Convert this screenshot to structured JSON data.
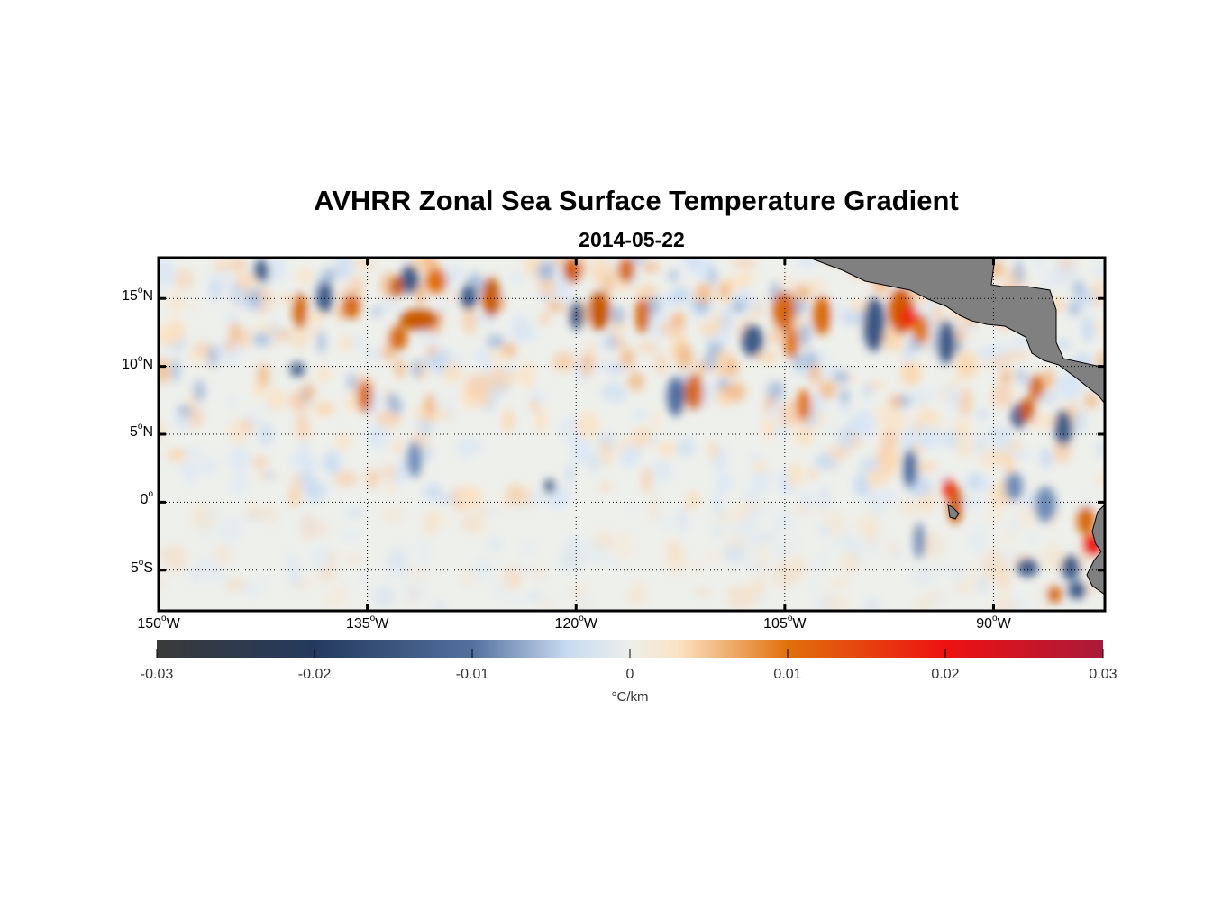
{
  "title": "AVHRR Zonal Sea Surface Temperature Gradient",
  "subtitle": "2014-05-22",
  "map": {
    "lon_range": [
      -150,
      -82
    ],
    "lat_range": [
      -8,
      18
    ],
    "land_color": "#808080",
    "grid": "dotted",
    "lon_ticks": [
      {
        "lon": -150,
        "deg": "150",
        "hemi": "W"
      },
      {
        "lon": -135,
        "deg": "135",
        "hemi": "W"
      },
      {
        "lon": -120,
        "deg": "120",
        "hemi": "W"
      },
      {
        "lon": -105,
        "deg": "105",
        "hemi": "W"
      },
      {
        "lon": -90,
        "deg": "90",
        "hemi": "W"
      }
    ],
    "lat_ticks": [
      {
        "lat": 15,
        "deg": "15",
        "hemi": "N"
      },
      {
        "lat": 10,
        "deg": "10",
        "hemi": "N"
      },
      {
        "lat": 5,
        "deg": "5",
        "hemi": "N"
      },
      {
        "lat": 0,
        "deg": "0",
        "hemi": ""
      },
      {
        "lat": -5,
        "deg": "5",
        "hemi": "S"
      }
    ]
  },
  "colorbar": {
    "min": -0.03,
    "max": 0.03,
    "ticks": [
      "-0.03",
      "-0.02",
      "-0.01",
      "0",
      "0.01",
      "0.02",
      "0.03"
    ],
    "units": "°C/km",
    "stops": [
      {
        "v": -0.03,
        "c": "#3a3a3a"
      },
      {
        "v": -0.02,
        "c": "#243a5e"
      },
      {
        "v": -0.01,
        "c": "#53709e"
      },
      {
        "v": -0.004,
        "c": "#c8daf0"
      },
      {
        "v": 0.0,
        "c": "#ecefeb"
      },
      {
        "v": 0.003,
        "c": "#fbe3c6"
      },
      {
        "v": 0.01,
        "c": "#e0700c"
      },
      {
        "v": 0.02,
        "c": "#ee1111"
      },
      {
        "v": 0.03,
        "c": "#a81a3a"
      }
    ]
  }
}
